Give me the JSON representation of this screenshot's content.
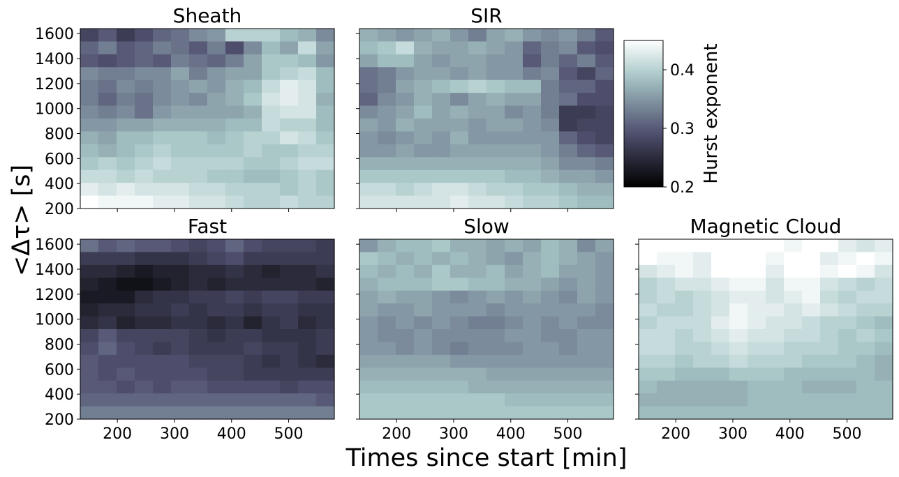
{
  "figure": {
    "shared_xlabel": "Times since start [min]",
    "shared_ylabel": "<Δτ> [s]",
    "colorbar": {
      "label": "Hurst exponent",
      "ticks": [
        "0.2",
        "0.3",
        "0.4"
      ],
      "range": [
        0.2,
        0.45
      ],
      "colormap": "bone"
    }
  },
  "chart_data": [
    {
      "type": "heatmap",
      "title": "Sheath",
      "x_range": [
        135,
        580
      ],
      "y_range": [
        200,
        1640
      ],
      "xticks": [
        200,
        300,
        400,
        500
      ],
      "yticks": [
        200,
        400,
        600,
        800,
        1000,
        1200,
        1400,
        1600
      ],
      "rows_order": "top_to_bottom",
      "grid": [
        [
          0.28,
          0.3,
          0.27,
          0.29,
          0.31,
          0.32,
          0.34,
          0.35,
          0.4,
          0.4,
          0.4,
          0.38,
          0.37,
          0.34
        ],
        [
          0.31,
          0.33,
          0.3,
          0.31,
          0.33,
          0.32,
          0.3,
          0.33,
          0.29,
          0.34,
          0.38,
          0.36,
          0.41,
          0.36
        ],
        [
          0.3,
          0.29,
          0.3,
          0.31,
          0.3,
          0.33,
          0.32,
          0.31,
          0.33,
          0.36,
          0.39,
          0.39,
          0.38,
          0.35
        ],
        [
          0.34,
          0.33,
          0.33,
          0.34,
          0.34,
          0.36,
          0.33,
          0.35,
          0.36,
          0.36,
          0.39,
          0.4,
          0.41,
          0.38
        ],
        [
          0.33,
          0.32,
          0.34,
          0.33,
          0.34,
          0.35,
          0.36,
          0.35,
          0.37,
          0.38,
          0.41,
          0.43,
          0.42,
          0.38
        ],
        [
          0.33,
          0.31,
          0.33,
          0.32,
          0.34,
          0.35,
          0.34,
          0.36,
          0.37,
          0.39,
          0.42,
          0.43,
          0.42,
          0.37
        ],
        [
          0.34,
          0.33,
          0.34,
          0.32,
          0.35,
          0.36,
          0.36,
          0.36,
          0.36,
          0.37,
          0.41,
          0.42,
          0.42,
          0.38
        ],
        [
          0.35,
          0.35,
          0.36,
          0.36,
          0.37,
          0.37,
          0.37,
          0.37,
          0.38,
          0.38,
          0.41,
          0.4,
          0.4,
          0.38
        ],
        [
          0.37,
          0.36,
          0.38,
          0.38,
          0.39,
          0.39,
          0.39,
          0.38,
          0.39,
          0.4,
          0.4,
          0.42,
          0.41,
          0.39
        ],
        [
          0.38,
          0.37,
          0.38,
          0.39,
          0.4,
          0.39,
          0.39,
          0.39,
          0.39,
          0.4,
          0.39,
          0.39,
          0.4,
          0.4
        ],
        [
          0.39,
          0.4,
          0.39,
          0.4,
          0.41,
          0.4,
          0.4,
          0.4,
          0.4,
          0.39,
          0.39,
          0.4,
          0.41,
          0.41
        ],
        [
          0.41,
          0.41,
          0.4,
          0.41,
          0.4,
          0.4,
          0.4,
          0.39,
          0.39,
          0.38,
          0.38,
          0.39,
          0.4,
          0.39
        ],
        [
          0.43,
          0.42,
          0.43,
          0.42,
          0.42,
          0.42,
          0.41,
          0.41,
          0.4,
          0.4,
          0.4,
          0.39,
          0.4,
          0.39
        ],
        [
          0.45,
          0.44,
          0.44,
          0.44,
          0.43,
          0.43,
          0.42,
          0.42,
          0.41,
          0.4,
          0.4,
          0.41,
          0.4,
          0.4
        ]
      ]
    },
    {
      "type": "heatmap",
      "title": "SIR",
      "x_range": [
        135,
        580
      ],
      "y_range": [
        200,
        1640
      ],
      "xticks": [
        200,
        300,
        400,
        500
      ],
      "yticks": [
        200,
        400,
        600,
        800,
        1000,
        1200,
        1400,
        1600
      ],
      "rows_order": "top_to_bottom",
      "grid": [
        [
          0.37,
          0.36,
          0.35,
          0.36,
          0.37,
          0.35,
          0.33,
          0.36,
          0.37,
          0.35,
          0.34,
          0.35,
          0.33,
          0.3
        ],
        [
          0.38,
          0.39,
          0.41,
          0.37,
          0.36,
          0.36,
          0.37,
          0.36,
          0.35,
          0.31,
          0.33,
          0.34,
          0.3,
          0.29
        ],
        [
          0.36,
          0.38,
          0.38,
          0.36,
          0.35,
          0.36,
          0.36,
          0.35,
          0.35,
          0.3,
          0.33,
          0.31,
          0.33,
          0.3
        ],
        [
          0.32,
          0.33,
          0.35,
          0.36,
          0.36,
          0.35,
          0.36,
          0.35,
          0.35,
          0.33,
          0.34,
          0.3,
          0.28,
          0.31
        ],
        [
          0.32,
          0.33,
          0.36,
          0.37,
          0.38,
          0.39,
          0.4,
          0.39,
          0.38,
          0.38,
          0.33,
          0.31,
          0.31,
          0.29
        ],
        [
          0.31,
          0.34,
          0.35,
          0.37,
          0.36,
          0.34,
          0.36,
          0.37,
          0.36,
          0.36,
          0.33,
          0.32,
          0.29,
          0.29
        ],
        [
          0.34,
          0.35,
          0.36,
          0.38,
          0.36,
          0.37,
          0.36,
          0.36,
          0.34,
          0.35,
          0.33,
          0.27,
          0.27,
          0.28
        ],
        [
          0.36,
          0.35,
          0.37,
          0.36,
          0.36,
          0.36,
          0.35,
          0.36,
          0.36,
          0.35,
          0.34,
          0.27,
          0.28,
          0.28
        ],
        [
          0.35,
          0.34,
          0.35,
          0.36,
          0.35,
          0.37,
          0.35,
          0.35,
          0.35,
          0.35,
          0.35,
          0.31,
          0.29,
          0.28
        ],
        [
          0.35,
          0.35,
          0.36,
          0.35,
          0.35,
          0.36,
          0.36,
          0.36,
          0.36,
          0.36,
          0.35,
          0.33,
          0.31,
          0.3
        ],
        [
          0.37,
          0.37,
          0.37,
          0.37,
          0.37,
          0.37,
          0.37,
          0.37,
          0.37,
          0.37,
          0.36,
          0.34,
          0.34,
          0.33
        ],
        [
          0.39,
          0.39,
          0.39,
          0.39,
          0.39,
          0.39,
          0.39,
          0.39,
          0.38,
          0.38,
          0.37,
          0.36,
          0.36,
          0.35
        ],
        [
          0.41,
          0.41,
          0.4,
          0.41,
          0.42,
          0.42,
          0.41,
          0.4,
          0.4,
          0.39,
          0.39,
          0.38,
          0.37,
          0.37
        ],
        [
          0.42,
          0.42,
          0.42,
          0.42,
          0.42,
          0.43,
          0.42,
          0.42,
          0.41,
          0.4,
          0.4,
          0.39,
          0.38,
          0.38
        ]
      ]
    },
    {
      "type": "heatmap",
      "title": "Fast",
      "x_range": [
        135,
        580
      ],
      "y_range": [
        200,
        1640
      ],
      "xticks": [
        200,
        300,
        400,
        500
      ],
      "yticks": [
        200,
        400,
        600,
        800,
        1000,
        1200,
        1400,
        1600
      ],
      "rows_order": "top_to_bottom",
      "grid": [
        [
          0.32,
          0.3,
          0.31,
          0.3,
          0.3,
          0.29,
          0.28,
          0.29,
          0.31,
          0.29,
          0.28,
          0.28,
          0.28,
          0.27
        ],
        [
          0.27,
          0.27,
          0.27,
          0.26,
          0.26,
          0.26,
          0.27,
          0.28,
          0.29,
          0.27,
          0.27,
          0.27,
          0.27,
          0.27
        ],
        [
          0.25,
          0.25,
          0.24,
          0.23,
          0.24,
          0.24,
          0.25,
          0.25,
          0.26,
          0.25,
          0.24,
          0.25,
          0.25,
          0.26
        ],
        [
          0.24,
          0.23,
          0.22,
          0.22,
          0.23,
          0.24,
          0.25,
          0.24,
          0.25,
          0.25,
          0.25,
          0.25,
          0.25,
          0.24
        ],
        [
          0.23,
          0.23,
          0.23,
          0.25,
          0.26,
          0.26,
          0.27,
          0.27,
          0.28,
          0.27,
          0.28,
          0.28,
          0.27,
          0.27
        ],
        [
          0.24,
          0.25,
          0.25,
          0.26,
          0.26,
          0.27,
          0.26,
          0.27,
          0.27,
          0.26,
          0.27,
          0.27,
          0.26,
          0.26
        ],
        [
          0.25,
          0.26,
          0.24,
          0.25,
          0.25,
          0.26,
          0.26,
          0.25,
          0.26,
          0.24,
          0.26,
          0.27,
          0.25,
          0.26
        ],
        [
          0.28,
          0.3,
          0.28,
          0.28,
          0.28,
          0.28,
          0.27,
          0.26,
          0.27,
          0.27,
          0.26,
          0.26,
          0.26,
          0.27
        ],
        [
          0.29,
          0.31,
          0.29,
          0.28,
          0.27,
          0.28,
          0.27,
          0.27,
          0.27,
          0.28,
          0.27,
          0.27,
          0.26,
          0.27
        ],
        [
          0.3,
          0.29,
          0.29,
          0.29,
          0.29,
          0.29,
          0.28,
          0.28,
          0.28,
          0.27,
          0.26,
          0.27,
          0.26,
          0.25
        ],
        [
          0.3,
          0.29,
          0.3,
          0.29,
          0.29,
          0.29,
          0.29,
          0.28,
          0.28,
          0.27,
          0.27,
          0.27,
          0.27,
          0.27
        ],
        [
          0.3,
          0.3,
          0.29,
          0.3,
          0.29,
          0.3,
          0.3,
          0.29,
          0.29,
          0.29,
          0.29,
          0.28,
          0.29,
          0.29
        ],
        [
          0.31,
          0.31,
          0.31,
          0.31,
          0.31,
          0.31,
          0.31,
          0.31,
          0.31,
          0.31,
          0.31,
          0.31,
          0.31,
          0.3
        ],
        [
          0.33,
          0.33,
          0.33,
          0.33,
          0.33,
          0.33,
          0.33,
          0.33,
          0.33,
          0.33,
          0.33,
          0.33,
          0.33,
          0.33
        ]
      ]
    },
    {
      "type": "heatmap",
      "title": "Slow",
      "x_range": [
        135,
        580
      ],
      "y_range": [
        200,
        1640
      ],
      "xticks": [
        200,
        300,
        400,
        500
      ],
      "yticks": [
        200,
        400,
        600,
        800,
        1000,
        1200,
        1400,
        1600
      ],
      "rows_order": "top_to_bottom",
      "grid": [
        [
          0.35,
          0.37,
          0.38,
          0.38,
          0.39,
          0.37,
          0.37,
          0.36,
          0.37,
          0.36,
          0.38,
          0.37,
          0.34,
          0.36
        ],
        [
          0.39,
          0.38,
          0.37,
          0.38,
          0.37,
          0.38,
          0.37,
          0.36,
          0.35,
          0.37,
          0.38,
          0.37,
          0.36,
          0.35
        ],
        [
          0.38,
          0.37,
          0.38,
          0.37,
          0.39,
          0.37,
          0.37,
          0.38,
          0.36,
          0.37,
          0.38,
          0.36,
          0.36,
          0.35
        ],
        [
          0.37,
          0.38,
          0.38,
          0.38,
          0.39,
          0.39,
          0.38,
          0.38,
          0.37,
          0.37,
          0.36,
          0.35,
          0.36,
          0.35
        ],
        [
          0.36,
          0.37,
          0.36,
          0.36,
          0.35,
          0.34,
          0.35,
          0.36,
          0.35,
          0.36,
          0.35,
          0.34,
          0.36,
          0.35
        ],
        [
          0.36,
          0.35,
          0.35,
          0.36,
          0.35,
          0.35,
          0.35,
          0.34,
          0.35,
          0.35,
          0.35,
          0.35,
          0.35,
          0.34
        ],
        [
          0.35,
          0.34,
          0.35,
          0.34,
          0.35,
          0.34,
          0.33,
          0.33,
          0.34,
          0.35,
          0.34,
          0.35,
          0.34,
          0.34
        ],
        [
          0.35,
          0.34,
          0.34,
          0.35,
          0.34,
          0.34,
          0.34,
          0.34,
          0.35,
          0.35,
          0.34,
          0.34,
          0.35,
          0.35
        ],
        [
          0.35,
          0.35,
          0.34,
          0.35,
          0.34,
          0.33,
          0.34,
          0.34,
          0.34,
          0.35,
          0.35,
          0.34,
          0.35,
          0.35
        ],
        [
          0.36,
          0.36,
          0.36,
          0.36,
          0.36,
          0.35,
          0.35,
          0.35,
          0.35,
          0.35,
          0.35,
          0.35,
          0.35,
          0.35
        ],
        [
          0.37,
          0.37,
          0.37,
          0.37,
          0.37,
          0.37,
          0.37,
          0.36,
          0.36,
          0.36,
          0.36,
          0.36,
          0.36,
          0.36
        ],
        [
          0.38,
          0.38,
          0.38,
          0.38,
          0.38,
          0.38,
          0.37,
          0.37,
          0.37,
          0.37,
          0.37,
          0.37,
          0.37,
          0.37
        ],
        [
          0.39,
          0.39,
          0.39,
          0.39,
          0.39,
          0.39,
          0.39,
          0.39,
          0.38,
          0.38,
          0.38,
          0.38,
          0.38,
          0.38
        ],
        [
          0.39,
          0.39,
          0.39,
          0.39,
          0.39,
          0.39,
          0.39,
          0.39,
          0.39,
          0.39,
          0.39,
          0.39,
          0.39,
          0.39
        ]
      ]
    },
    {
      "type": "heatmap",
      "title": "Magnetic Cloud",
      "x_range": [
        135,
        580
      ],
      "y_range": [
        200,
        1640
      ],
      "xticks": [
        200,
        300,
        400,
        500
      ],
      "yticks": [
        200,
        400,
        600,
        800,
        1000,
        1200,
        1400,
        1600
      ],
      "rows_order": "top_to_bottom",
      "grid": [
        [
          0.45,
          0.45,
          0.45,
          0.45,
          0.45,
          0.45,
          0.45,
          0.45,
          0.44,
          0.45,
          0.45,
          0.43,
          0.42,
          0.43
        ],
        [
          0.45,
          0.44,
          0.44,
          0.43,
          0.45,
          0.45,
          0.45,
          0.44,
          0.45,
          0.45,
          0.43,
          0.44,
          0.45,
          0.44
        ],
        [
          0.42,
          0.43,
          0.44,
          0.43,
          0.45,
          0.45,
          0.45,
          0.43,
          0.45,
          0.45,
          0.44,
          0.45,
          0.44,
          0.42
        ],
        [
          0.4,
          0.41,
          0.42,
          0.42,
          0.43,
          0.44,
          0.44,
          0.42,
          0.44,
          0.44,
          0.42,
          0.41,
          0.4,
          0.41
        ],
        [
          0.4,
          0.41,
          0.4,
          0.41,
          0.42,
          0.43,
          0.43,
          0.42,
          0.43,
          0.44,
          0.41,
          0.4,
          0.41,
          0.41
        ],
        [
          0.41,
          0.4,
          0.4,
          0.41,
          0.42,
          0.44,
          0.43,
          0.43,
          0.42,
          0.43,
          0.42,
          0.41,
          0.4,
          0.4
        ],
        [
          0.4,
          0.41,
          0.41,
          0.41,
          0.43,
          0.44,
          0.43,
          0.42,
          0.42,
          0.41,
          0.4,
          0.4,
          0.39,
          0.38
        ],
        [
          0.41,
          0.41,
          0.4,
          0.41,
          0.42,
          0.43,
          0.42,
          0.42,
          0.41,
          0.41,
          0.4,
          0.39,
          0.4,
          0.39
        ],
        [
          0.41,
          0.41,
          0.4,
          0.4,
          0.41,
          0.42,
          0.41,
          0.41,
          0.4,
          0.4,
          0.4,
          0.39,
          0.39,
          0.38
        ],
        [
          0.4,
          0.4,
          0.39,
          0.4,
          0.4,
          0.41,
          0.4,
          0.4,
          0.4,
          0.39,
          0.39,
          0.39,
          0.38,
          0.37
        ],
        [
          0.39,
          0.39,
          0.38,
          0.38,
          0.38,
          0.39,
          0.39,
          0.39,
          0.38,
          0.38,
          0.38,
          0.38,
          0.38,
          0.37
        ],
        [
          0.38,
          0.37,
          0.37,
          0.37,
          0.37,
          0.37,
          0.38,
          0.38,
          0.38,
          0.37,
          0.37,
          0.37,
          0.38,
          0.38
        ],
        [
          0.37,
          0.37,
          0.37,
          0.37,
          0.37,
          0.37,
          0.38,
          0.38,
          0.38,
          0.38,
          0.38,
          0.38,
          0.38,
          0.38
        ],
        [
          0.38,
          0.38,
          0.38,
          0.38,
          0.38,
          0.38,
          0.38,
          0.38,
          0.38,
          0.38,
          0.38,
          0.38,
          0.38,
          0.38
        ]
      ]
    }
  ]
}
